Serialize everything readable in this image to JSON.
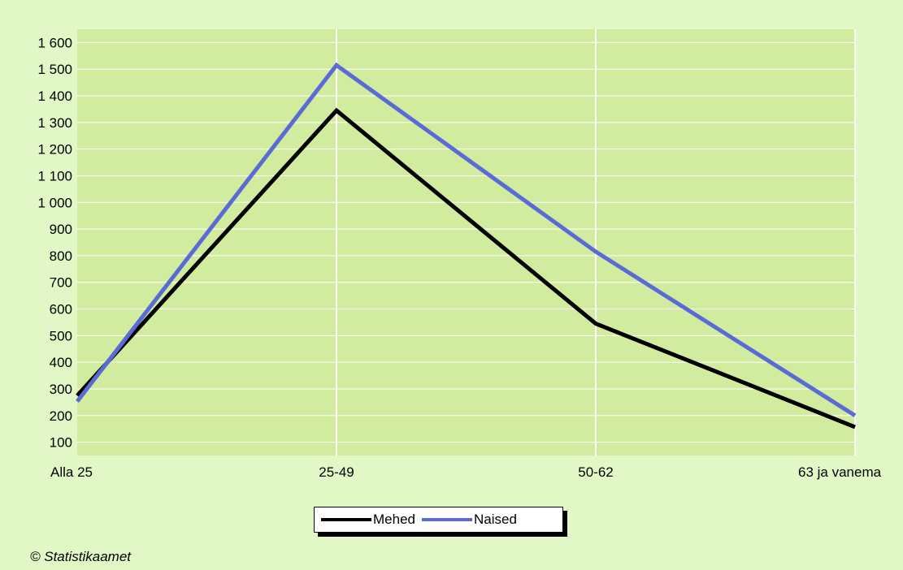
{
  "chart_data": {
    "type": "line",
    "categories": [
      "Alla 25",
      "25-49",
      "50-62",
      "63 ja vanema"
    ],
    "series": [
      {
        "name": "Mehed",
        "values": [
          275,
          1345,
          545,
          157
        ],
        "color": "#000000"
      },
      {
        "name": "Naised",
        "values": [
          253,
          1515,
          815,
          200
        ],
        "color": "#5a6bd6"
      }
    ],
    "ylim": [
      50,
      1650
    ],
    "yticks": [
      100,
      200,
      300,
      400,
      500,
      600,
      700,
      800,
      900,
      1000,
      1100,
      1200,
      1300,
      1400,
      1500,
      1600
    ],
    "ytick_labels": [
      "100",
      "200",
      "300",
      "400",
      "500",
      "600",
      "700",
      "800",
      "900",
      "1 000",
      "1 100",
      "1 200",
      "1 300",
      "1 400",
      "1 500",
      "1 600"
    ],
    "grid": true,
    "plot_background": "#d1eb9f",
    "page_background": "#e2f7c6",
    "legend_position": "bottom-center"
  },
  "footer": {
    "copyright": "© Statistikaamet"
  }
}
